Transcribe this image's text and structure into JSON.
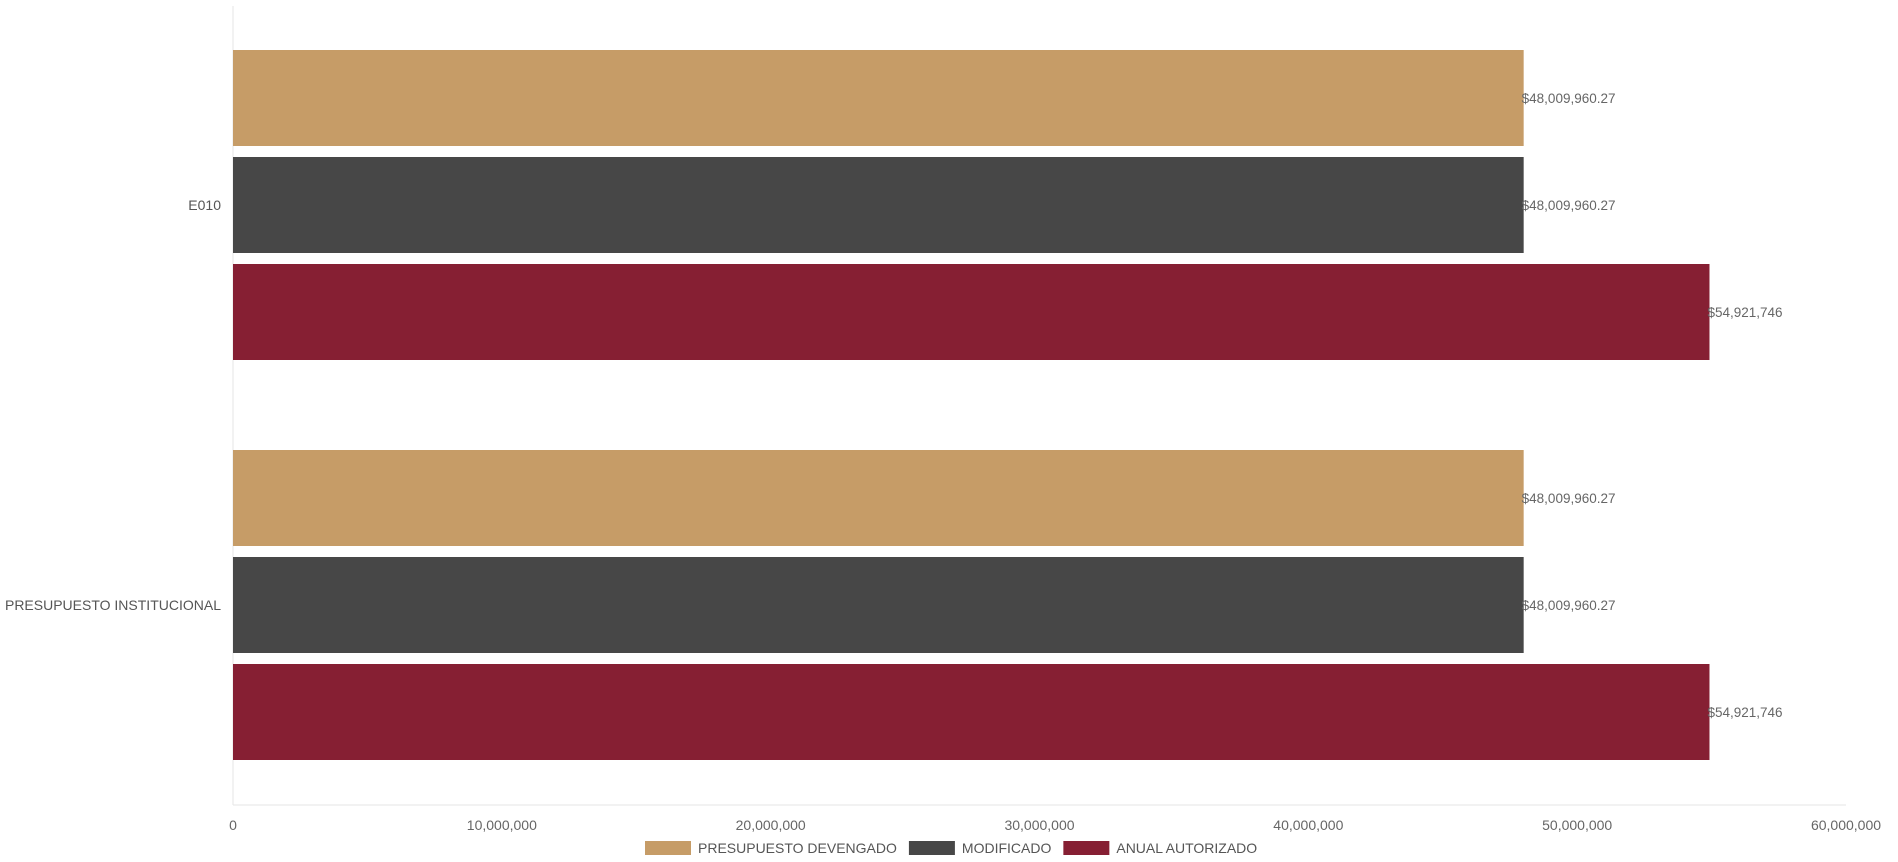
{
  "chart_data": {
    "type": "bar",
    "orientation": "horizontal",
    "categories": [
      "E010",
      "PRESUPUESTO INSTITUCIONAL"
    ],
    "series": [
      {
        "name": "PRESUPUESTO DEVENGADO",
        "color": "#C69C67",
        "values": [
          48009960.27,
          48009960.27
        ],
        "labels": [
          "$48,009,960.27",
          "$48,009,960.27"
        ]
      },
      {
        "name": "MODIFICADO",
        "color": "#474747",
        "values": [
          48009960.27,
          48009960.27
        ],
        "labels": [
          "$48,009,960.27",
          "$48,009,960.27"
        ]
      },
      {
        "name": "ANUAL AUTORIZADO",
        "color": "#861F33",
        "values": [
          54921746,
          54921746
        ],
        "labels": [
          "$54,921,746",
          "$54,921,746"
        ]
      }
    ],
    "xlim": [
      0,
      60000000
    ],
    "x_ticks": [
      0,
      10000000,
      20000000,
      30000000,
      40000000,
      50000000,
      60000000
    ],
    "x_tick_labels": [
      "0",
      "10,000,000",
      "20,000,000",
      "30,000,000",
      "40,000,000",
      "50,000,000",
      "60,000,000"
    ],
    "grid": false,
    "legend_position": "bottom-center",
    "title": "",
    "xlabel": "",
    "ylabel": ""
  }
}
